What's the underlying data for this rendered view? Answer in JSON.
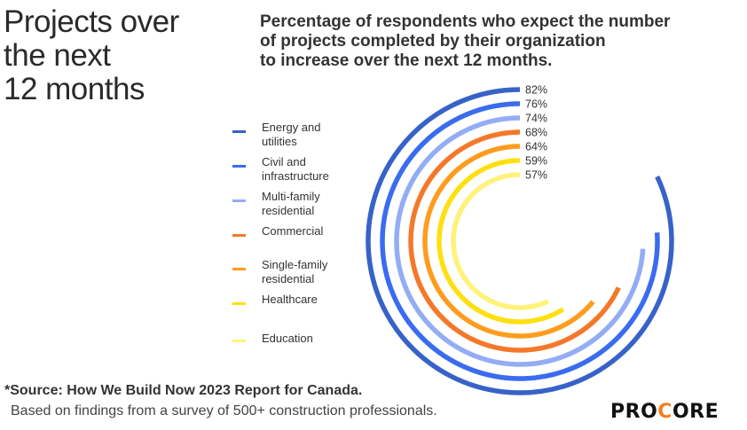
{
  "title_lines": [
    "Projects over",
    "the next",
    "12 months"
  ],
  "chart_data": {
    "type": "radial-bar",
    "title": "Percentage of respondents who expect the number of projects completed by their organization to increase over the next 12 months.",
    "title_lines": [
      "Percentage of respondents who expect the number",
      "of projects completed by their organization",
      "to increase over the next 12 months."
    ],
    "categories": [
      "Energy and utilities",
      "Civil and infrastructure",
      "Multi-family residential",
      "Commercial",
      "Single-family residential",
      "Healthcare",
      "Education"
    ],
    "legend_lines": [
      [
        "Energy and",
        "utilities"
      ],
      [
        "Civil and",
        "infrastructure"
      ],
      [
        "Multi-family",
        "residential"
      ],
      [
        "Commercial"
      ],
      [
        "Single-family",
        "residential"
      ],
      [
        "Healthcare"
      ],
      [
        "Education"
      ]
    ],
    "values": [
      82,
      76,
      74,
      68,
      64,
      59,
      57
    ],
    "labels": [
      "82%",
      "76%",
      "74%",
      "68%",
      "64%",
      "59%",
      "57%"
    ],
    "unit": "%",
    "max": 100,
    "colors": [
      "#3762c8",
      "#3a6cf0",
      "#93adf5",
      "#f5782a",
      "#ff9c1e",
      "#ffdf10",
      "#fff27a"
    ],
    "legend_placement": "left"
  },
  "footer": {
    "source": "*Source: How We Build Now 2023 Report for Canada.",
    "note": "Based on findings from a survey of 500+ construction professionals."
  },
  "logo": {
    "text_a": "PRO",
    "text_b": "C",
    "text_c": "ORE",
    "accent": "#f47e20"
  }
}
